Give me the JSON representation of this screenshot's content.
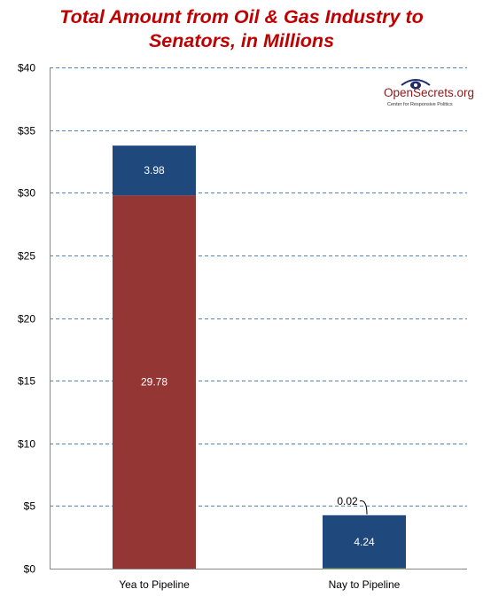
{
  "chart_data": {
    "type": "bar",
    "stacked": true,
    "title_line1": "Total Amount from Oil & Gas Industry to",
    "title_line2": "Senators, in Millions",
    "categories": [
      "Yea to Pipeline",
      "Nay to Pipeline"
    ],
    "series": [
      {
        "values": [
          29.78,
          0.02
        ],
        "color": "#943634"
      },
      {
        "values": [
          3.98,
          4.24
        ],
        "color": "#1f497d"
      }
    ],
    "segment_labels": [
      [
        "29.78",
        "3.98"
      ],
      [
        "0.02",
        "4.24"
      ]
    ],
    "ylim": [
      0,
      40
    ],
    "y_ticks": [
      {
        "value": 0,
        "label": "$0"
      },
      {
        "value": 5,
        "label": "$5"
      },
      {
        "value": 10,
        "label": "$10"
      },
      {
        "value": 15,
        "label": "$15"
      },
      {
        "value": 20,
        "label": "$20"
      },
      {
        "value": 25,
        "label": "$25"
      },
      {
        "value": 30,
        "label": "$30"
      },
      {
        "value": 35,
        "label": "$35"
      },
      {
        "value": 40,
        "label": "$40"
      }
    ],
    "grid": true,
    "grid_color": "#4f81bd",
    "nay_top_segment_color": "#9bbb59"
  },
  "logo": {
    "text": "OpenSecrets.org",
    "tagline": "Center for Responsive Politics"
  }
}
